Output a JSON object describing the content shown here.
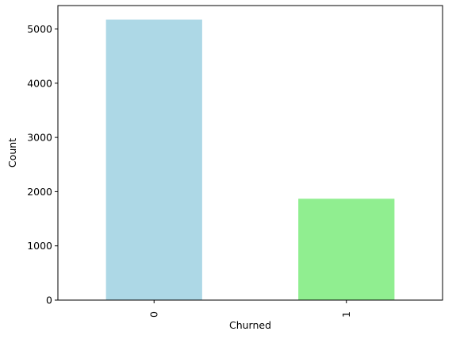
{
  "chart_data": {
    "type": "bar",
    "categories": [
      "0",
      "1"
    ],
    "values": [
      5174,
      1869
    ],
    "colors": [
      "#add8e6",
      "#90ee90"
    ],
    "title": "",
    "xlabel": "Churned",
    "ylabel": "Count",
    "ylim": [
      0,
      5432
    ],
    "yticks": [
      0,
      1000,
      2000,
      3000,
      4000,
      5000
    ],
    "ytick_labels": [
      "0",
      "1000",
      "2000",
      "3000",
      "4000",
      "5000"
    ],
    "x_tick_rotation": "vertical",
    "grid": false,
    "legend": "none"
  }
}
